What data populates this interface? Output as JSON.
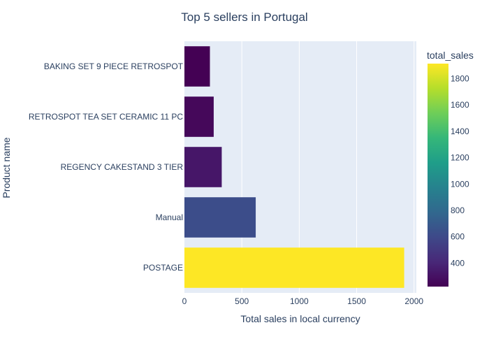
{
  "chart_data": {
    "type": "bar",
    "orientation": "horizontal",
    "title": "Top 5 sellers in Portugal",
    "xlabel": "Total sales in local currency",
    "ylabel": "Product name",
    "categories": [
      "BAKING SET 9 PIECE RETROSPOT",
      "RETROSPOT TEA SET CERAMIC 11 PC",
      "REGENCY CAKESTAND 3 TIER",
      "Manual",
      "POSTAGE"
    ],
    "values": [
      222,
      255,
      325,
      621,
      1914
    ],
    "xlim": [
      0,
      2020
    ],
    "xticks": [
      0,
      500,
      1000,
      1500,
      2000
    ],
    "grid": true,
    "plot_bgcolor": "#e5ecf6",
    "colorscale": "viridis",
    "colorbar": {
      "title": "total_sales",
      "range": [
        222,
        1914
      ],
      "ticks": [
        400,
        600,
        800,
        1000,
        1200,
        1400,
        1600,
        1800
      ]
    }
  }
}
